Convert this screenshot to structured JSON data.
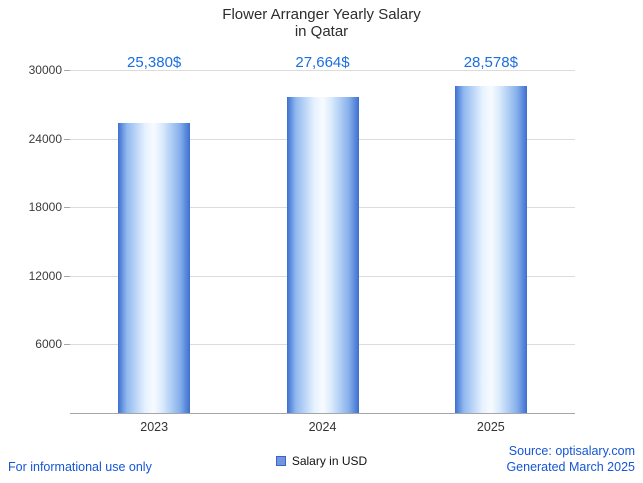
{
  "header": {
    "title_line1": "Flower Arranger Yearly Salary",
    "title_line2": "in Qatar"
  },
  "chart_data": {
    "type": "bar",
    "title": "Flower Arranger Yearly Salary in Qatar",
    "categories": [
      "2023",
      "2024",
      "2025"
    ],
    "values": [
      25380,
      27664,
      28578
    ],
    "value_labels": [
      "25,380$",
      "27,664$",
      "28,578$"
    ],
    "series_name": "Salary in USD",
    "xlabel": "",
    "ylabel": "",
    "ylim": [
      0,
      30000
    ],
    "yticks": [
      6000,
      12000,
      18000,
      24000,
      30000
    ],
    "grid": true,
    "legend_position": "bottom",
    "colors": {
      "bar_edge": "#3d6fd0",
      "bar_center": "#f8fbff",
      "value_label": "#1a6fe0",
      "footer_text": "#1556d6",
      "gridline": "#dcdcdc"
    }
  },
  "legend": {
    "label": "Salary in USD"
  },
  "footer": {
    "left": "For informational use only",
    "source": "Source: optisalary.com",
    "generated": "Generated March 2025"
  }
}
